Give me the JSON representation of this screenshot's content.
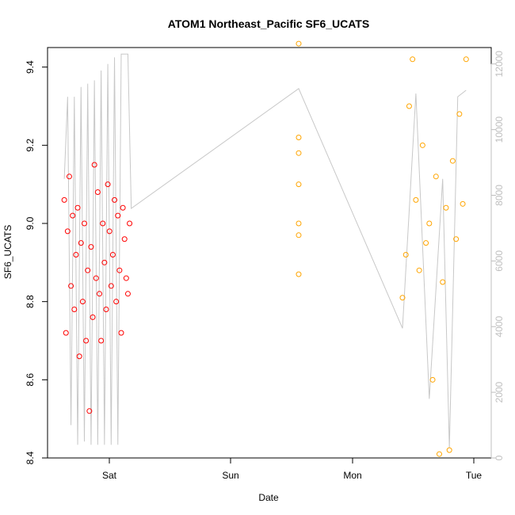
{
  "chart_data": {
    "type": "scatter",
    "title": "ATOM1 Northeast_Pacific SF6_UCATS",
    "xlabel": "Date",
    "ylabel": "SF6_UCATS",
    "x_ticks": [
      "Sat",
      "Sun",
      "Mon",
      "Tue"
    ],
    "ylim": [
      8.4,
      9.45
    ],
    "y_ticks": [
      "8.4",
      "8.6",
      "8.8",
      "9.0",
      "9.2",
      "9.4"
    ],
    "y2lim": [
      0,
      12500
    ],
    "y2_ticks": [
      "0",
      "2000",
      "4000",
      "6000",
      "8000",
      "10000",
      "12000"
    ],
    "grid": false,
    "colors": {
      "series1": "#ff0000",
      "series2": "#ffa500",
      "altitude_line": "#c8c8c8",
      "axis": "#000000",
      "right_axis": "#bfbfbf"
    },
    "series": [
      {
        "color": "#ff0000",
        "x": [
          -0.4,
          -0.39,
          -0.38,
          -0.37,
          -0.36,
          -0.35,
          -0.34,
          -0.33,
          -0.32,
          -0.31,
          -0.3,
          -0.29,
          -0.28,
          -0.27,
          -0.26,
          -0.25,
          -0.24,
          -0.23,
          -0.22,
          -0.21,
          -0.2,
          -0.19,
          -0.18,
          -0.17,
          -0.16,
          -0.15,
          -0.14,
          -0.13,
          -0.12,
          -0.11,
          -0.1,
          -0.09,
          -0.08,
          -0.07,
          -0.06,
          -0.05,
          -0.04,
          -0.03,
          -0.02,
          -0.01
        ],
        "y": [
          9.06,
          8.72,
          8.98,
          9.12,
          8.84,
          9.02,
          8.78,
          8.92,
          9.04,
          8.66,
          8.95,
          8.8,
          9.0,
          8.7,
          8.88,
          8.52,
          8.94,
          8.76,
          9.15,
          8.86,
          9.08,
          8.82,
          8.7,
          9.0,
          8.9,
          8.78,
          9.1,
          8.98,
          8.84,
          8.92,
          9.06,
          8.8,
          9.02,
          8.88,
          8.72,
          9.04,
          8.96,
          8.86,
          8.82,
          9.0
        ]
      },
      {
        "color": "#ffa500",
        "x": [
          1.0,
          1.0,
          1.0,
          1.0,
          1.0,
          1.0,
          1.0,
          1.62,
          1.64,
          1.66,
          1.68,
          1.7,
          1.72,
          1.74,
          1.76,
          1.78,
          1.8,
          1.82,
          1.84,
          1.86,
          1.88,
          1.9,
          1.92,
          1.94,
          1.96,
          1.98,
          2.0
        ],
        "y": [
          9.46,
          9.22,
          9.18,
          9.1,
          9.0,
          8.97,
          8.87,
          8.81,
          8.92,
          9.3,
          9.42,
          9.06,
          8.88,
          9.2,
          8.95,
          9.0,
          8.6,
          9.12,
          8.41,
          8.85,
          9.04,
          8.42,
          9.16,
          8.96,
          9.28,
          9.05,
          9.42
        ]
      }
    ],
    "altitude_line": {
      "x": [
        -0.4,
        -0.38,
        -0.36,
        -0.34,
        -0.32,
        -0.3,
        -0.28,
        -0.26,
        -0.24,
        -0.22,
        -0.2,
        -0.18,
        -0.16,
        -0.14,
        -0.12,
        -0.1,
        -0.08,
        -0.06,
        -0.04,
        -0.02,
        0.0,
        1.0,
        1.62,
        1.7,
        1.78,
        1.86,
        1.9,
        1.95,
        2.0
      ],
      "y": [
        8500,
        11000,
        1000,
        11000,
        400,
        11300,
        500,
        11400,
        400,
        11500,
        400,
        11800,
        400,
        12000,
        400,
        12200,
        400,
        12300,
        12300,
        12300,
        7600,
        11250,
        3950,
        11100,
        1800,
        8500,
        300,
        11000,
        11200
      ]
    }
  }
}
